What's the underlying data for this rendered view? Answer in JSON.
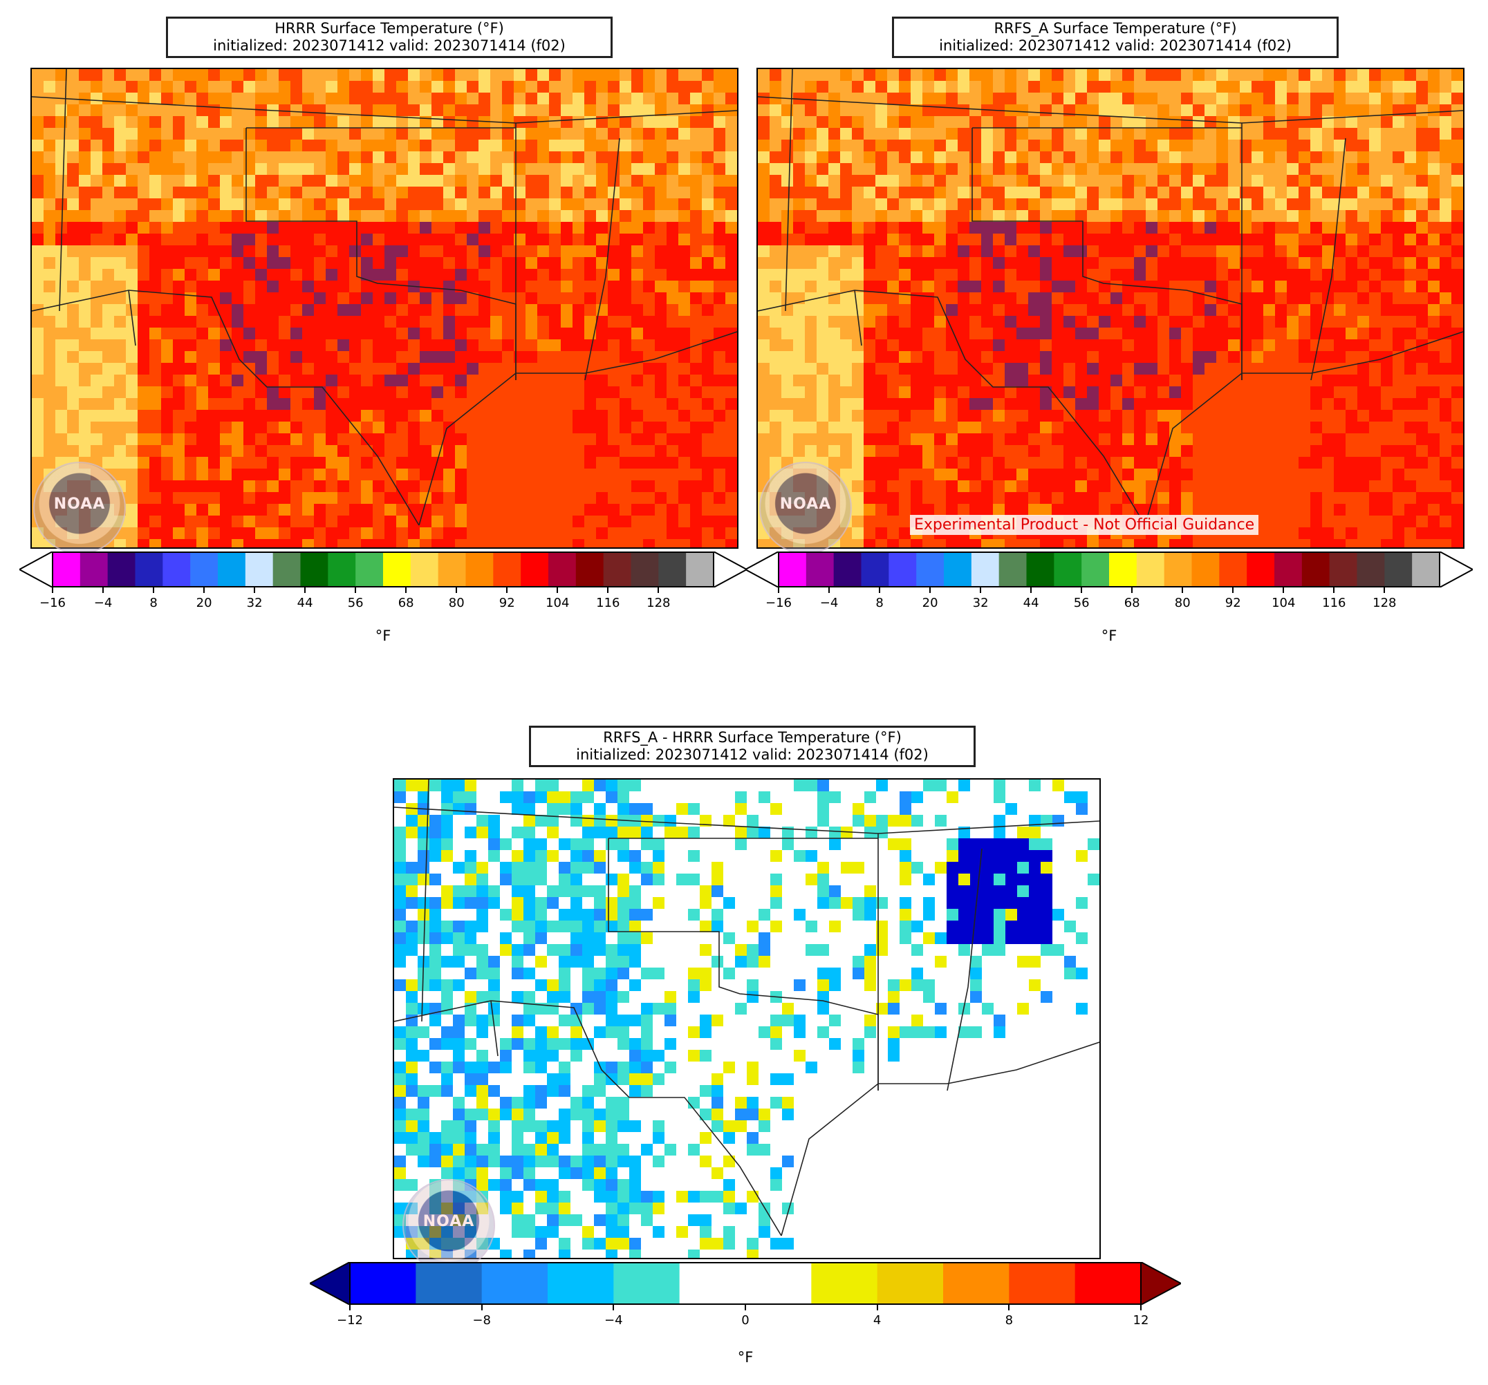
{
  "panels": {
    "hrrr": {
      "title_line1": "HRRR Surface Temperature (°F)",
      "title_line2": "initialized: 2023071412 valid: 2023071414 (f02)",
      "logo_text": "NOAA"
    },
    "rrfs": {
      "title_line1": "RRFS_A Surface Temperature (°F)",
      "title_line2": "initialized: 2023071412 valid: 2023071414 (f02)",
      "logo_text": "NOAA",
      "note": "Experimental Product - Not Official Guidance"
    },
    "diff": {
      "title_line1": "RRFS_A - HRRR Surface Temperature (°F)",
      "title_line2": "initialized: 2023071412 valid: 2023071414 (f02)",
      "logo_text": "NOAA"
    }
  },
  "temp_colorbar": {
    "units": "°F",
    "ticks": [
      "−16",
      "−4",
      "8",
      "20",
      "32",
      "44",
      "56",
      "68",
      "80",
      "92",
      "104",
      "116",
      "128"
    ],
    "colors": [
      "#ff00ff",
      "#990099",
      "#330077",
      "#2222bb",
      "#4444ff",
      "#3377ff",
      "#00a0f0",
      "#cce6ff",
      "#558855",
      "#006600",
      "#119922",
      "#44bb55",
      "#ffff00",
      "#ffdd55",
      "#ffaa22",
      "#ff8800",
      "#ff4400",
      "#ff0000",
      "#aa0033",
      "#880000",
      "#772222",
      "#553333",
      "#444444",
      "#b0b0b0"
    ],
    "under_color": "#ffffff",
    "over_color": "#ffffff"
  },
  "diff_colorbar": {
    "units": "°F",
    "ticks": [
      "−12",
      "−8",
      "−4",
      "0",
      "4",
      "8",
      "12"
    ],
    "colors": [
      "#0000ff",
      "#1c6cc8",
      "#1e90ff",
      "#00bfff",
      "#40e0d0",
      "#ffffff",
      "#ffffff",
      "#eeee00",
      "#eecc00",
      "#ff8c00",
      "#ff4500",
      "#ff0000"
    ],
    "under_color": "#00008b",
    "over_color": "#8b0000"
  },
  "palette": {
    "hrrr_fill": [
      "#ff1000",
      "#ff4500",
      "#ff8c00",
      "#ffaa33",
      "#ffdd66",
      "#882255"
    ],
    "rrfs_fill": [
      "#ff1000",
      "#ff4500",
      "#ff8c00",
      "#ffaa33",
      "#ffdd66",
      "#882255"
    ],
    "diff_fill": [
      "#ffffff",
      "#40e0d0",
      "#00bfff",
      "#1e90ff",
      "#1c6cc8",
      "#eeee00",
      "#0000cc"
    ]
  }
}
